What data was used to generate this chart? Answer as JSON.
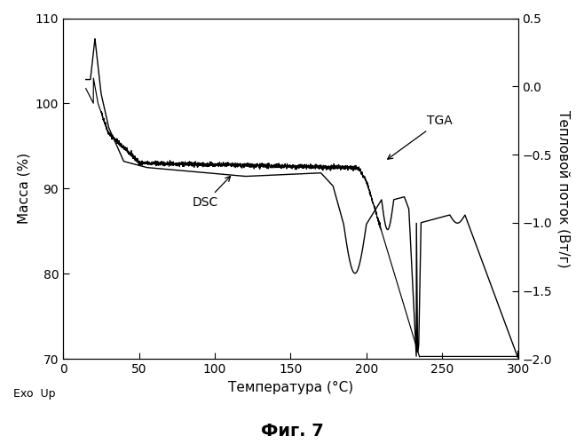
{
  "xlabel": "Температура (°C)",
  "ylabel_left": "Масса (%)",
  "ylabel_right": "Тепловой поток (Вт/г)",
  "caption": "Фиг. 7",
  "exo_label": "Exo  Up",
  "tga_label": "TGA",
  "dsc_label": "DSC",
  "xlim": [
    0,
    300
  ],
  "ylim_left": [
    70,
    110
  ],
  "ylim_right": [
    -2.0,
    0.5
  ],
  "xticks": [
    0,
    50,
    100,
    150,
    200,
    250,
    300
  ],
  "yticks_left": [
    70,
    80,
    90,
    100,
    110
  ],
  "yticks_right": [
    -2.0,
    -1.5,
    -1.0,
    -0.5,
    0.0,
    0.5
  ],
  "line_color": "#000000",
  "bg_color": "#ffffff"
}
